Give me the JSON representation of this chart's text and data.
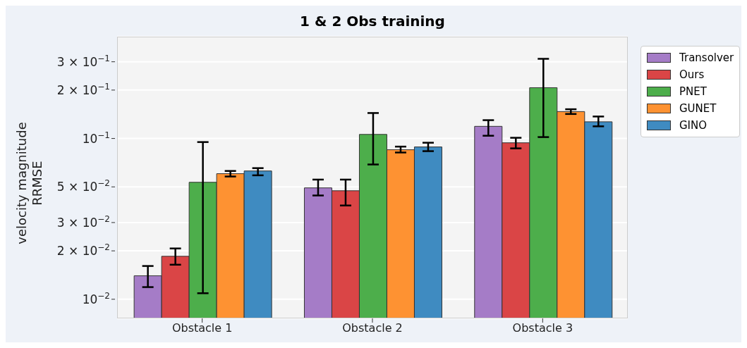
{
  "chart_data": {
    "type": "bar",
    "title": "1 & 2 Obs training",
    "ylabel": "velocity magnitude\nRRMSE",
    "categories": [
      "Obstacle 1",
      "Obstacle 2",
      "Obstacle 3"
    ],
    "series": [
      {
        "name": "Transolver",
        "color": "#a57cc7",
        "values": [
          0.014,
          0.0493,
          0.119
        ],
        "errors": [
          [
            0.0119,
            0.0161
          ],
          [
            0.0442,
            0.0555
          ],
          [
            0.104,
            0.13
          ]
        ]
      },
      {
        "name": "Ours",
        "color": "#da4546",
        "values": [
          0.0185,
          0.0473,
          0.094
        ],
        "errors": [
          [
            0.0164,
            0.0207
          ],
          [
            0.0383,
            0.0555
          ],
          [
            0.0868,
            0.101
          ]
        ]
      },
      {
        "name": "PNET",
        "color": "#4dae4b",
        "values": [
          0.0534,
          0.106,
          0.207
        ],
        "errors": [
          [
            0.0109,
            0.095
          ],
          [
            0.0689,
            0.144
          ],
          [
            0.102,
            0.313
          ]
        ]
      },
      {
        "name": "GUNET",
        "color": "#fe9232",
        "values": [
          0.0604,
          0.0851,
          0.147
        ],
        "errors": [
          [
            0.058,
            0.0628
          ],
          [
            0.0818,
            0.089
          ],
          [
            0.142,
            0.152
          ]
        ]
      },
      {
        "name": "GINO",
        "color": "#3f8bc1",
        "values": [
          0.0628,
          0.0886,
          0.127
        ],
        "errors": [
          [
            0.059,
            0.0654
          ],
          [
            0.0834,
            0.0941
          ],
          [
            0.119,
            0.137
          ]
        ]
      }
    ],
    "log": true,
    "ylim": [
      0.0076,
      0.43
    ],
    "yticks": [
      {
        "value": 0.01,
        "label": "10$^{−2}$"
      },
      {
        "value": 0.02,
        "label": "2 × 10$^{−2}$"
      },
      {
        "value": 0.03,
        "label": "3 × 10$^{−2}$"
      },
      {
        "value": 0.05,
        "label": "5 × 10$^{−2}$"
      },
      {
        "value": 0.1,
        "label": "10$^{−1}$"
      },
      {
        "value": 0.2,
        "label": "2 × 10$^{−1}$"
      },
      {
        "value": 0.3,
        "label": "3 × 10$^{−1}$"
      }
    ],
    "grid": "y",
    "legend": "top right"
  }
}
